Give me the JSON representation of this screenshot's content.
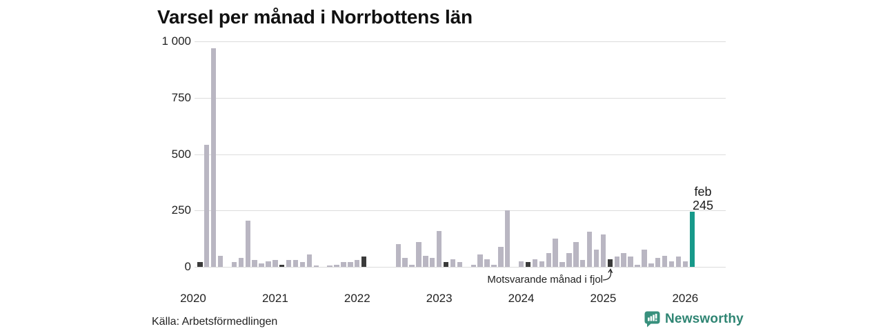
{
  "chart_data": {
    "type": "bar",
    "title": "Varsel per månad i Norrbottens län",
    "xlabel": "",
    "ylabel": "",
    "ylim": [
      0,
      1000
    ],
    "grid": "horizontal-only",
    "legend_position": "none",
    "y_ticks": [
      {
        "value": 0,
        "label": "0"
      },
      {
        "value": 250,
        "label": "250"
      },
      {
        "value": 500,
        "label": "500"
      },
      {
        "value": 750,
        "label": "750"
      },
      {
        "value": 1000,
        "label": "1 000"
      }
    ],
    "x_year_labels": [
      "2020",
      "2021",
      "2022",
      "2023",
      "2024",
      "2025",
      "2026"
    ],
    "month_keys": [
      "jan",
      "feb",
      "mar",
      "apr",
      "maj",
      "jun",
      "jul",
      "aug",
      "sep",
      "okt",
      "nov",
      "dec"
    ],
    "years": [
      {
        "year": 2020,
        "values": [
          null,
          20,
          540,
          970,
          50,
          0,
          20,
          40,
          205,
          30,
          15,
          25
        ]
      },
      {
        "year": 2021,
        "values": [
          30,
          10,
          30,
          30,
          20,
          55,
          5,
          0,
          5,
          10,
          20,
          20
        ]
      },
      {
        "year": 2022,
        "values": [
          30,
          45,
          0,
          0,
          0,
          0,
          100,
          40,
          10,
          110,
          50,
          40
        ]
      },
      {
        "year": 2023,
        "values": [
          160,
          20,
          35,
          20,
          0,
          10,
          55,
          35,
          10,
          90,
          250,
          0
        ]
      },
      {
        "year": 2024,
        "values": [
          25,
          20,
          35,
          25,
          60,
          125,
          20,
          60,
          110,
          30,
          155,
          75
        ]
      },
      {
        "year": 2025,
        "values": [
          145,
          35,
          45,
          60,
          45,
          8,
          75,
          15,
          40,
          50,
          25,
          45
        ]
      },
      {
        "year": 2026,
        "values": [
          25,
          245
        ]
      }
    ],
    "highlight_rules": {
      "february_bars": "dark",
      "current_bar": "feb 2026 teal"
    },
    "current_bar": {
      "month": "feb",
      "year": 2026,
      "value": 245,
      "label_line1": "feb",
      "label_line2": "245"
    },
    "annotation": {
      "text": "Motsvarande månad i fjol",
      "points_to": "feb 2025"
    },
    "colors": {
      "bar": "#b9b6c2",
      "february_bar": "#3a3a3a",
      "current_bar": "#17998a",
      "grid": "#dcdcdc",
      "text": "#222222"
    }
  },
  "source": {
    "label": "Källa: Arbetsförmedlingen"
  },
  "branding": {
    "logo_text": "Newsworthy",
    "icon_color": "#38907d",
    "text_color": "#2f8573"
  }
}
